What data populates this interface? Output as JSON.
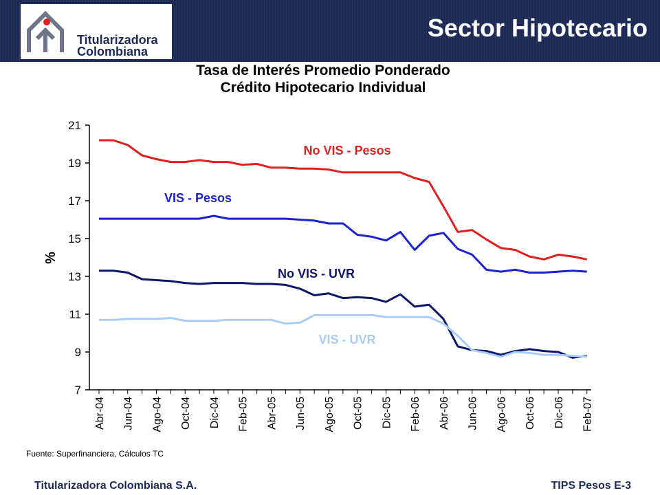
{
  "header": {
    "company_line1": "Titularizadora",
    "company_line2": "Colombiana",
    "title": "Sector Hipotecario"
  },
  "chart_data": {
    "type": "line",
    "title_line1": "Tasa de Interés Promedio Ponderado",
    "title_line2": "Crédito Hipotecario Individual",
    "ylabel": "%",
    "ylim": [
      7,
      21
    ],
    "yticks": [
      7,
      9,
      11,
      13,
      15,
      17,
      19,
      21
    ],
    "xtick_labels": [
      "Abr-04",
      "Jun-04",
      "Ago-04",
      "Oct-04",
      "Dic-04",
      "Feb-05",
      "Abr-05",
      "Jun-05",
      "Ago-05",
      "Oct-05",
      "Dic-05",
      "Feb-06",
      "Abr-06",
      "Jun-06",
      "Ago-06",
      "Oct-06",
      "Dic-06",
      "Feb-07"
    ],
    "categories": [
      "Abr-04",
      "May-04",
      "Jun-04",
      "Jul-04",
      "Ago-04",
      "Sep-04",
      "Oct-04",
      "Nov-04",
      "Dic-04",
      "Ene-05",
      "Feb-05",
      "Mar-05",
      "Abr-05",
      "May-05",
      "Jun-05",
      "Jul-05",
      "Ago-05",
      "Sep-05",
      "Oct-05",
      "Nov-05",
      "Dic-05",
      "Ene-06",
      "Feb-06",
      "Mar-06",
      "Abr-06",
      "May-06",
      "Jun-06",
      "Jul-06",
      "Ago-06",
      "Sep-06",
      "Oct-06",
      "Nov-06",
      "Dic-06",
      "Ene-07",
      "Feb-07"
    ],
    "series": [
      {
        "name": "No VIS - Pesos",
        "color": "#e0201e",
        "values": [
          20.2,
          20.2,
          19.95,
          19.4,
          19.2,
          19.05,
          19.05,
          19.15,
          19.05,
          19.05,
          18.9,
          18.95,
          18.75,
          18.75,
          18.7,
          18.7,
          18.65,
          18.5,
          18.5,
          18.5,
          18.5,
          18.5,
          18.2,
          18.0,
          16.7,
          15.35,
          15.45,
          14.95,
          14.5,
          14.4,
          14.05,
          13.9,
          14.15,
          14.05,
          13.9
        ]
      },
      {
        "name": "VIS - Pesos",
        "color": "#1b22d0",
        "values": [
          16.05,
          16.05,
          16.05,
          16.05,
          16.05,
          16.05,
          16.05,
          16.05,
          16.2,
          16.05,
          16.05,
          16.05,
          16.05,
          16.05,
          16.0,
          15.95,
          15.8,
          15.8,
          15.2,
          15.1,
          14.9,
          15.35,
          14.4,
          15.15,
          15.3,
          14.45,
          14.15,
          13.35,
          13.25,
          13.35,
          13.2,
          13.2,
          13.25,
          13.3,
          13.25
        ]
      },
      {
        "name": "No VIS - UVR",
        "color": "#0d1669",
        "values": [
          13.3,
          13.3,
          13.2,
          12.85,
          12.8,
          12.75,
          12.65,
          12.6,
          12.65,
          12.65,
          12.65,
          12.6,
          12.6,
          12.55,
          12.35,
          12.0,
          12.1,
          11.85,
          11.9,
          11.85,
          11.65,
          12.05,
          11.4,
          11.5,
          10.75,
          9.3,
          9.1,
          9.05,
          8.85,
          9.05,
          9.15,
          9.05,
          9.0,
          8.7,
          8.8
        ]
      },
      {
        "name": "VIS - UVR",
        "color": "#a8cdf4",
        "values": [
          10.7,
          10.7,
          10.75,
          10.75,
          10.75,
          10.8,
          10.65,
          10.65,
          10.65,
          10.7,
          10.7,
          10.7,
          10.7,
          10.5,
          10.55,
          10.95,
          10.95,
          10.95,
          10.95,
          10.95,
          10.85,
          10.85,
          10.85,
          10.85,
          10.5,
          9.85,
          9.1,
          8.95,
          8.75,
          9.0,
          8.95,
          8.85,
          8.85,
          8.8,
          8.75
        ]
      }
    ],
    "series_tail": [
      13.7,
      8.8,
      9.1
    ],
    "grid": false,
    "legend": "inline labels"
  },
  "source": "Fuente: Superfinanciera, Cálculos TC",
  "footer": {
    "left": "Titularizadora Colombiana S.A.",
    "right": "TIPS Pesos E-3"
  }
}
